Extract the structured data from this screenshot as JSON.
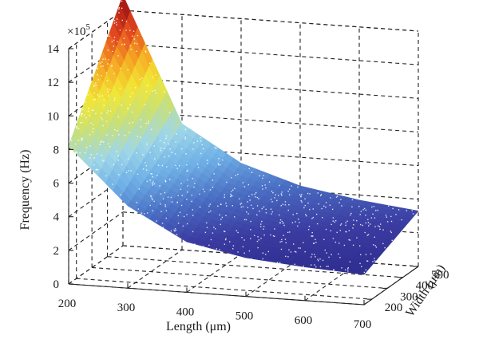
{
  "chart_data": {
    "type": "surface",
    "title": "",
    "xlabel": "Length (μm)",
    "ylabel": "Width (μm)",
    "zlabel": "Frequency (Hz)",
    "z_multiplier_label": "×10",
    "z_multiplier_exponent": "5",
    "xlim": [
      200,
      700
    ],
    "ylim": [
      150,
      500
    ],
    "zlim": [
      0,
      14
    ],
    "x_ticks": [
      200,
      300,
      400,
      500,
      600,
      700
    ],
    "y_ticks": [
      200,
      300,
      400,
      500
    ],
    "z_ticks": [
      0,
      2,
      4,
      6,
      8,
      10,
      12,
      14
    ],
    "grid": true,
    "colormap": [
      "#2b2b8c",
      "#3a3aa0",
      "#4a6fc4",
      "#6fb0e6",
      "#9fd7e8",
      "#c8e07a",
      "#f2e634",
      "#f6a623",
      "#e2461e",
      "#9c1414"
    ],
    "samples_length_um": [
      200,
      300,
      400,
      500,
      600,
      700
    ],
    "samples_width_um": [
      150,
      500
    ],
    "surface_values_x1e5_hz": [
      [
        8.2,
        4.9,
        3.0,
        2.3,
        2.0,
        1.8
      ],
      [
        14.9,
        7.5,
        5.4,
        4.3,
        3.7,
        3.3
      ]
    ]
  }
}
